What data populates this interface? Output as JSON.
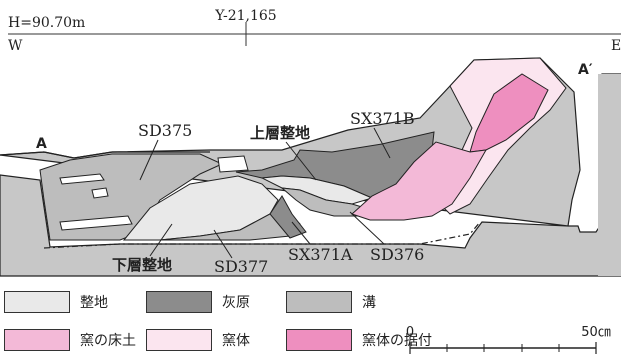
{
  "header": {
    "elevation": "H=90.70m",
    "grid_coord": "Y-21,165",
    "west": "W",
    "east": "E"
  },
  "section_points": {
    "start": "A",
    "end": "A′"
  },
  "feature_labels": {
    "sd375": "SD375",
    "upper_fill": "上層整地",
    "sx371b": "SX371B",
    "lower_fill": "下層整地",
    "sd377": "SD377",
    "sx371a": "SX371A",
    "sd376": "SD376"
  },
  "legend": {
    "items": [
      {
        "label": "整地",
        "color": "#e9e9e9"
      },
      {
        "label": "灰原",
        "color": "#8c8c8c"
      },
      {
        "label": "溝",
        "color": "#bdbdbd"
      },
      {
        "label": "窯の床土",
        "color": "#f3b9d7"
      },
      {
        "label": "窯体",
        "color": "#fbe5ef"
      },
      {
        "label": "窯体の据付",
        "color": "#ee8fbf"
      }
    ]
  },
  "scale": {
    "zero": "0",
    "max": "50㎝"
  },
  "colors": {
    "ground": "#c7c7c7",
    "fill": "#e9e9e9",
    "ash": "#8c8c8c",
    "ditch": "#bdbdbd",
    "kiln_floor": "#f3b9d7",
    "kiln_body": "#fbe5ef",
    "kiln_mount": "#ee8fbf"
  }
}
